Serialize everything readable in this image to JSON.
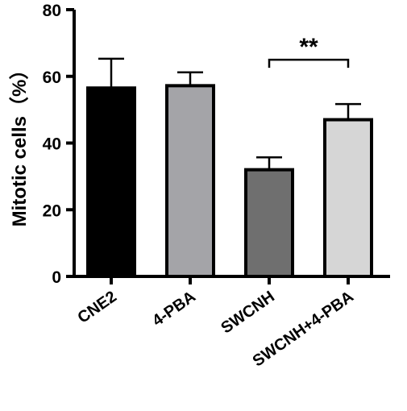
{
  "chart_data": {
    "type": "bar",
    "title": "",
    "xlabel": "",
    "ylabel": "Mitotic cells（%）",
    "ylim": [
      0,
      80
    ],
    "yticks": [
      0,
      20,
      40,
      60,
      80
    ],
    "grid": false,
    "categories": [
      "CNE2",
      "4-PBA",
      "SWCNH",
      "SWCNH+4-PBA"
    ],
    "values": [
      56.5,
      57.2,
      32.0,
      47.0
    ],
    "errors": [
      8.8,
      4.0,
      3.7,
      4.7
    ],
    "colors": [
      "#000000",
      "#a4a4a8",
      "#6f6f6f",
      "#d6d6d6"
    ],
    "annotations": [
      {
        "from": "SWCNH",
        "to": "SWCNH+4-PBA",
        "label": "**",
        "y": 65
      }
    ]
  }
}
